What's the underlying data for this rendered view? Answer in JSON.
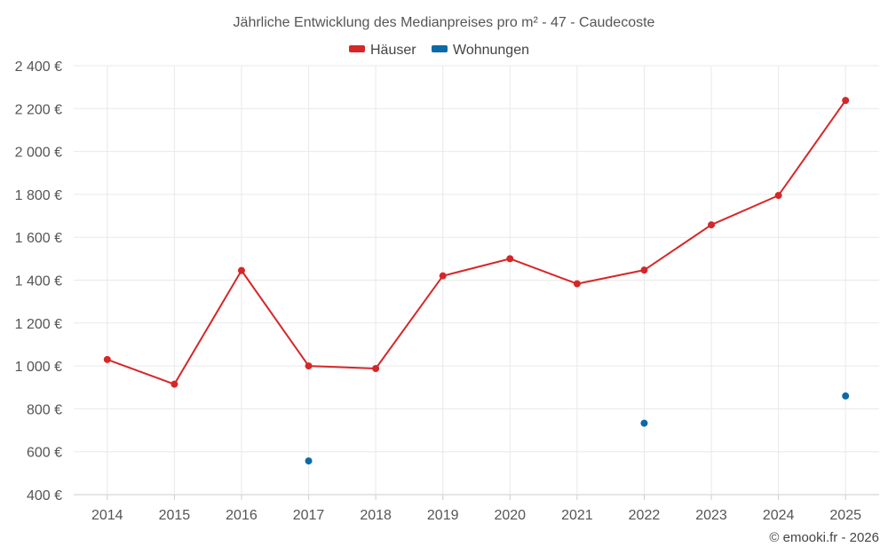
{
  "chart_data": {
    "type": "line",
    "title": "Jährliche Entwicklung des Medianpreises pro m² - 47 - Caudecoste",
    "categories": [
      "2014",
      "2015",
      "2016",
      "2017",
      "2018",
      "2019",
      "2020",
      "2021",
      "2022",
      "2023",
      "2024",
      "2025"
    ],
    "series": [
      {
        "name": "Häuser",
        "color": "#d62728",
        "values": [
          1030,
          915,
          1445,
          1000,
          988,
          1420,
          1500,
          1383,
          1447,
          1658,
          1795,
          2238
        ]
      },
      {
        "name": "Wohnungen",
        "color": "#0b6aa7",
        "values": [
          null,
          null,
          null,
          557,
          null,
          null,
          null,
          null,
          733,
          null,
          null,
          860
        ]
      }
    ],
    "ylim": [
      400,
      2400
    ],
    "yticks": [
      400,
      600,
      800,
      1000,
      1200,
      1400,
      1600,
      1800,
      2000,
      2200,
      2400
    ],
    "ytick_labels": [
      "400 €",
      "600 €",
      "800 €",
      "1 000 €",
      "1 200 €",
      "1 400 €",
      "1 600 €",
      "1 800 €",
      "2 000 €",
      "2 200 €",
      "2 400 €"
    ],
    "xlabel": "",
    "ylabel": "",
    "legend": "top-center",
    "grid": true
  },
  "credit": "© emooki.fr - 2026"
}
